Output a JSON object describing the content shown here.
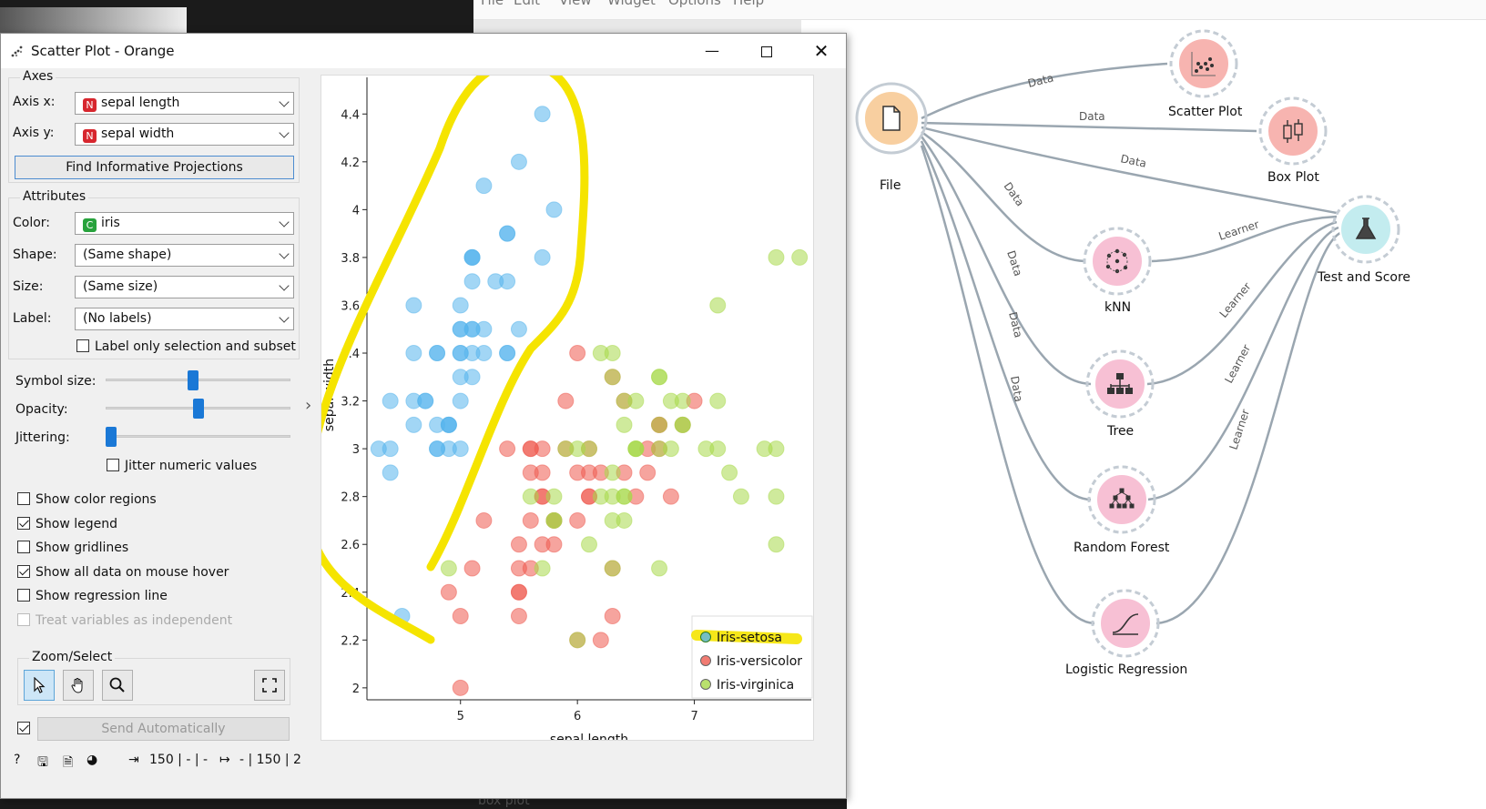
{
  "main_window": {
    "menu": [
      "File",
      "Edit",
      "View",
      "Widget",
      "Options",
      "Help"
    ],
    "bottom_text": "box plot"
  },
  "window": {
    "title": "Scatter Plot - Orange",
    "min_glyph": "—",
    "close_glyph": "✕"
  },
  "axes": {
    "group_title": "Axes",
    "x_label": "Axis x:",
    "x_value": "sepal length",
    "x_badge": "N",
    "y_label": "Axis y:",
    "y_value": "sepal width",
    "y_badge": "N",
    "find_button": "Find Informative Projections"
  },
  "attributes": {
    "group_title": "Attributes",
    "color_label": "Color:",
    "color_value": "iris",
    "color_badge": "C",
    "shape_label": "Shape:",
    "shape_value": "(Same shape)",
    "size_label": "Size:",
    "size_value": "(Same size)",
    "label_label": "Label:",
    "label_value": "(No labels)",
    "label_only_selection": "Label only selection and subset",
    "label_only_selection_checked": false
  },
  "sliders": {
    "symbol_size_label": "Symbol size:",
    "symbol_size_level": 0.47,
    "opacity_label": "Opacity:",
    "opacity_level": 0.5,
    "jittering_label": "Jittering:",
    "jittering_level": 0.0,
    "jitter_numeric": "Jitter numeric values",
    "jitter_numeric_checked": false
  },
  "options": [
    {
      "label": "Show color regions",
      "checked": false,
      "disabled": false
    },
    {
      "label": "Show legend",
      "checked": true,
      "disabled": false
    },
    {
      "label": "Show gridlines",
      "checked": false,
      "disabled": false
    },
    {
      "label": "Show all data on mouse hover",
      "checked": true,
      "disabled": false
    },
    {
      "label": "Show regression line",
      "checked": false,
      "disabled": false
    },
    {
      "label": "Treat variables as independent",
      "checked": false,
      "disabled": true
    }
  ],
  "zoom_select": {
    "group_title": "Zoom/Select",
    "tools": [
      "pointer-icon",
      "hand-icon",
      "magnifier-icon"
    ],
    "fit_icon": "fit-icon"
  },
  "send": {
    "checked": true,
    "label": "Send Automatically"
  },
  "status_bar": {
    "input_count": "150 | - | -",
    "output_count": "- | 150 | 2"
  },
  "colors": {
    "setosa": "#55b4ec",
    "versicolor": "#ee5a4f",
    "virginica": "#a8d94a",
    "highlight": "#f5e400",
    "accent": "#1a78d6"
  },
  "chart_data": {
    "type": "scatter",
    "xlabel": "sepal length",
    "ylabel": "sepal width",
    "xlim": [
      4.2,
      8.0
    ],
    "ylim": [
      1.95,
      4.5
    ],
    "x_ticks": [
      "5",
      "6",
      "7"
    ],
    "x_tick_values": [
      5,
      6,
      7
    ],
    "y_ticks": [
      "2",
      "2.2",
      "2.4",
      "2.6",
      "2.8",
      "3",
      "3.2",
      "3.4",
      "3.6",
      "3.8",
      "4",
      "4.2",
      "4.4"
    ],
    "y_tick_values": [
      2.0,
      2.2,
      2.4,
      2.6,
      2.8,
      3.0,
      3.2,
      3.4,
      3.6,
      3.8,
      4.0,
      4.2,
      4.4
    ],
    "legend_position": "bottom-right",
    "grid": false,
    "series": [
      {
        "name": "Iris-setosa",
        "color": "#55b4ec",
        "points": [
          [
            5.1,
            3.5
          ],
          [
            4.9,
            3.0
          ],
          [
            4.7,
            3.2
          ],
          [
            4.6,
            3.1
          ],
          [
            5.0,
            3.6
          ],
          [
            5.4,
            3.9
          ],
          [
            4.6,
            3.4
          ],
          [
            5.0,
            3.4
          ],
          [
            4.4,
            2.9
          ],
          [
            4.9,
            3.1
          ],
          [
            5.4,
            3.7
          ],
          [
            4.8,
            3.4
          ],
          [
            4.8,
            3.0
          ],
          [
            4.3,
            3.0
          ],
          [
            5.8,
            4.0
          ],
          [
            5.7,
            4.4
          ],
          [
            5.4,
            3.9
          ],
          [
            5.1,
            3.5
          ],
          [
            5.7,
            3.8
          ],
          [
            5.1,
            3.8
          ],
          [
            5.4,
            3.4
          ],
          [
            5.1,
            3.7
          ],
          [
            4.6,
            3.6
          ],
          [
            5.1,
            3.3
          ],
          [
            4.8,
            3.4
          ],
          [
            5.0,
            3.0
          ],
          [
            5.0,
            3.4
          ],
          [
            5.2,
            3.5
          ],
          [
            5.2,
            3.4
          ],
          [
            4.7,
            3.2
          ],
          [
            4.8,
            3.1
          ],
          [
            5.4,
            3.4
          ],
          [
            5.2,
            4.1
          ],
          [
            5.5,
            4.2
          ],
          [
            4.9,
            3.1
          ],
          [
            5.0,
            3.2
          ],
          [
            5.5,
            3.5
          ],
          [
            4.9,
            3.1
          ],
          [
            4.4,
            3.0
          ],
          [
            5.1,
            3.4
          ],
          [
            5.0,
            3.5
          ],
          [
            4.5,
            2.3
          ],
          [
            4.4,
            3.2
          ],
          [
            5.0,
            3.5
          ],
          [
            5.1,
            3.8
          ],
          [
            4.8,
            3.0
          ],
          [
            5.1,
            3.8
          ],
          [
            4.6,
            3.2
          ],
          [
            5.3,
            3.7
          ],
          [
            5.0,
            3.3
          ]
        ]
      },
      {
        "name": "Iris-versicolor",
        "color": "#ee5a4f",
        "points": [
          [
            7.0,
            3.2
          ],
          [
            6.4,
            3.2
          ],
          [
            6.9,
            3.1
          ],
          [
            5.5,
            2.3
          ],
          [
            6.5,
            2.8
          ],
          [
            5.7,
            2.8
          ],
          [
            6.3,
            3.3
          ],
          [
            4.9,
            2.4
          ],
          [
            6.6,
            2.9
          ],
          [
            5.2,
            2.7
          ],
          [
            5.0,
            2.0
          ],
          [
            5.9,
            3.0
          ],
          [
            6.0,
            2.2
          ],
          [
            6.1,
            2.9
          ],
          [
            5.6,
            2.9
          ],
          [
            6.7,
            3.1
          ],
          [
            5.6,
            3.0
          ],
          [
            5.8,
            2.7
          ],
          [
            6.2,
            2.2
          ],
          [
            5.6,
            2.5
          ],
          [
            5.9,
            3.2
          ],
          [
            6.1,
            2.8
          ],
          [
            6.3,
            2.5
          ],
          [
            6.1,
            2.8
          ],
          [
            6.4,
            2.9
          ],
          [
            6.6,
            3.0
          ],
          [
            6.8,
            2.8
          ],
          [
            6.7,
            3.0
          ],
          [
            6.0,
            2.9
          ],
          [
            5.7,
            2.6
          ],
          [
            5.5,
            2.4
          ],
          [
            5.5,
            2.4
          ],
          [
            5.8,
            2.7
          ],
          [
            6.0,
            2.7
          ],
          [
            5.4,
            3.0
          ],
          [
            6.0,
            3.4
          ],
          [
            6.7,
            3.1
          ],
          [
            6.3,
            2.3
          ],
          [
            5.6,
            3.0
          ],
          [
            5.5,
            2.5
          ],
          [
            5.5,
            2.6
          ],
          [
            6.1,
            3.0
          ],
          [
            5.8,
            2.6
          ],
          [
            5.0,
            2.3
          ],
          [
            5.6,
            2.7
          ],
          [
            5.7,
            3.0
          ],
          [
            5.7,
            2.9
          ],
          [
            6.2,
            2.9
          ],
          [
            5.1,
            2.5
          ],
          [
            5.7,
            2.8
          ]
        ]
      },
      {
        "name": "Iris-virginica",
        "color": "#a8d94a",
        "points": [
          [
            6.3,
            3.3
          ],
          [
            5.8,
            2.7
          ],
          [
            7.1,
            3.0
          ],
          [
            6.3,
            2.9
          ],
          [
            6.5,
            3.0
          ],
          [
            7.6,
            3.0
          ],
          [
            4.9,
            2.5
          ],
          [
            7.3,
            2.9
          ],
          [
            6.7,
            2.5
          ],
          [
            7.2,
            3.6
          ],
          [
            6.5,
            3.2
          ],
          [
            6.4,
            2.7
          ],
          [
            6.8,
            3.0
          ],
          [
            5.7,
            2.5
          ],
          [
            5.8,
            2.8
          ],
          [
            6.4,
            3.2
          ],
          [
            6.5,
            3.0
          ],
          [
            7.7,
            3.8
          ],
          [
            7.7,
            2.6
          ],
          [
            6.0,
            2.2
          ],
          [
            6.9,
            3.2
          ],
          [
            5.6,
            2.8
          ],
          [
            7.7,
            2.8
          ],
          [
            6.3,
            2.7
          ],
          [
            6.7,
            3.3
          ],
          [
            7.2,
            3.2
          ],
          [
            6.2,
            2.8
          ],
          [
            6.1,
            3.0
          ],
          [
            6.4,
            2.8
          ],
          [
            7.2,
            3.0
          ],
          [
            7.4,
            2.8
          ],
          [
            7.9,
            3.8
          ],
          [
            6.4,
            2.8
          ],
          [
            6.3,
            2.8
          ],
          [
            6.1,
            2.6
          ],
          [
            7.7,
            3.0
          ],
          [
            6.3,
            3.4
          ],
          [
            6.4,
            3.1
          ],
          [
            6.0,
            3.0
          ],
          [
            6.9,
            3.1
          ],
          [
            6.7,
            3.1
          ],
          [
            6.9,
            3.1
          ],
          [
            5.8,
            2.7
          ],
          [
            6.8,
            3.2
          ],
          [
            6.7,
            3.3
          ],
          [
            6.7,
            3.0
          ],
          [
            6.3,
            2.5
          ],
          [
            6.5,
            3.0
          ],
          [
            6.2,
            3.4
          ],
          [
            5.9,
            3.0
          ]
        ]
      }
    ]
  },
  "workflow": {
    "nodes": [
      {
        "id": "file",
        "label": "File",
        "icon": "file-icon",
        "color": "#f8cfa0"
      },
      {
        "id": "scatter",
        "label": "Scatter Plot",
        "icon": "scatter-plot-icon",
        "color": "#f7b4b0"
      },
      {
        "id": "boxplot",
        "label": "Box Plot",
        "icon": "box-plot-icon",
        "color": "#f7b4b0"
      },
      {
        "id": "test",
        "label": "Test and Score",
        "icon": "flask-icon",
        "color": "#c3ecef"
      },
      {
        "id": "knn",
        "label": "kNN",
        "icon": "knn-icon",
        "color": "#f7c0d4"
      },
      {
        "id": "tree",
        "label": "Tree",
        "icon": "tree-icon",
        "color": "#f7c0d4"
      },
      {
        "id": "rf",
        "label": "Random Forest",
        "icon": "random-forest-icon",
        "color": "#f7c0d4"
      },
      {
        "id": "lr",
        "label": "Logistic Regression",
        "icon": "logistic-regression-icon",
        "color": "#f7c0d4"
      }
    ],
    "link_labels": {
      "data": "Data",
      "learner": "Learner"
    }
  }
}
